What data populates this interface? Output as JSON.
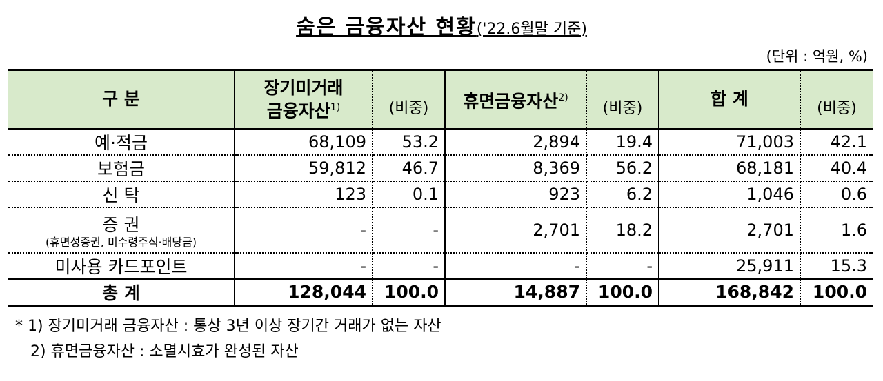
{
  "title": "숨은 금융자산 현황",
  "title_suffix": "('22.6월말 기준)",
  "unit": "(단위 : 억원, %)",
  "table": {
    "headers": [
      {
        "lines": [
          "구  분"
        ]
      },
      {
        "lines": [
          "장기미거래",
          "금융자산"
        ],
        "note": "1)"
      },
      {
        "lines": [
          "(비중)"
        ]
      },
      {
        "lines": [
          "휴면금융자산"
        ],
        "note": "2)"
      },
      {
        "lines": [
          "(비중)"
        ]
      },
      {
        "lines": [
          "합  계"
        ]
      },
      {
        "lines": [
          "(비중)"
        ]
      }
    ],
    "rows": [
      {
        "label": "예·적금",
        "cells": [
          "68,109",
          "53.2",
          "2,894",
          "19.4",
          "71,003",
          "42.1"
        ]
      },
      {
        "label": "보험금",
        "cells": [
          "59,812",
          "46.7",
          "8,369",
          "56.2",
          "68,181",
          "40.4"
        ]
      },
      {
        "label": "신  탁",
        "cells": [
          "123",
          "0.1",
          "923",
          "6.2",
          "1,046",
          "0.6"
        ]
      },
      {
        "label": "증  권",
        "sublabel": "(휴면성증권, 미수령주식·배당금)",
        "cells": [
          "-",
          "-",
          "2,701",
          "18.2",
          "2,701",
          "1.6"
        ]
      },
      {
        "label": "미사용 카드포인트",
        "cells": [
          "-",
          "-",
          "-",
          "-",
          "25,911",
          "15.3"
        ]
      },
      {
        "label": "총  계",
        "cells": [
          "128,044",
          "100.0",
          "14,887",
          "100.0",
          "168,842",
          "100.0"
        ]
      }
    ]
  },
  "footnotes": [
    "* 1) 장기미거래 금융자산 : 통상 3년 이상 장기간 거래가 없는 자산",
    "2) 휴면금융자산 : 소멸시효가 완성된 자산"
  ]
}
